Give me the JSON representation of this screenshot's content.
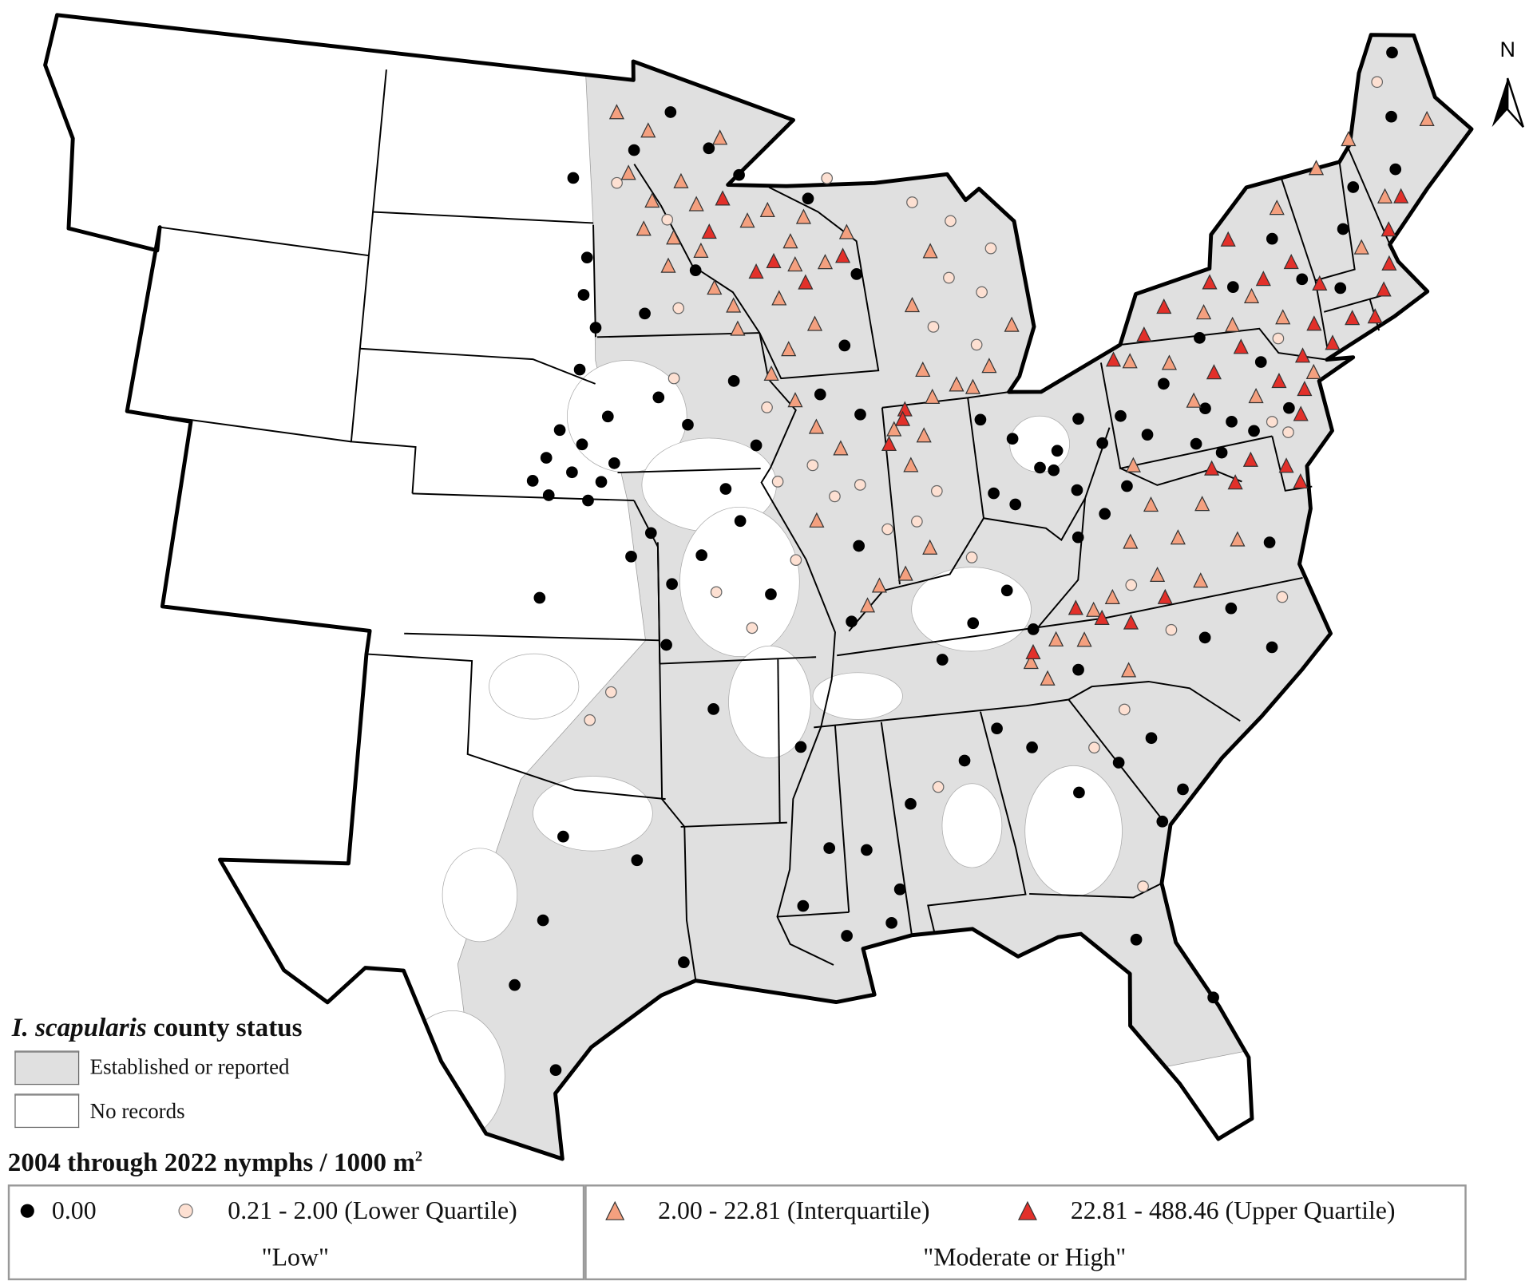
{
  "legend": {
    "status_title_italic": "I. scapularis",
    "status_title_rest": " county status",
    "established_label": "Established or reported",
    "no_records_label": "No records",
    "density_title": "2004 through 2022 nymphs / 1000 m",
    "density_title_sup": "2",
    "classes": [
      {
        "label": "0.00",
        "symbol": "circle",
        "color": "#000000"
      },
      {
        "label": "0.21 - 2.00 (Lower Quartile)",
        "symbol": "circle",
        "color": "#fde0d2"
      },
      {
        "label": "2.00 - 22.81 (Interquartile)",
        "symbol": "triangle",
        "color": "#f4a07f"
      },
      {
        "label": "22.81 - 488.46 (Upper Quartile)",
        "symbol": "triangle",
        "color": "#e2302a"
      }
    ],
    "group_low": "\"Low\"",
    "group_high": "\"Moderate or High\""
  },
  "north_arrow": {
    "label": "N"
  },
  "colors": {
    "established": "#e0e0e0",
    "no_records": "#ffffff",
    "border": "#000000"
  },
  "sites": [
    [
      -97.6,
      41.5,
      0
    ],
    [
      -96.9,
      41.2,
      0
    ],
    [
      -98.0,
      40.9,
      0
    ],
    [
      -97.2,
      40.6,
      0
    ],
    [
      -96.3,
      40.4,
      0
    ],
    [
      -97.9,
      40.1,
      0
    ],
    [
      -96.7,
      40.0,
      0
    ],
    [
      -95.9,
      40.8,
      0
    ],
    [
      -98.4,
      40.4,
      0
    ],
    [
      -96.1,
      41.8,
      0
    ],
    [
      -97.0,
      42.8,
      0
    ],
    [
      -96.5,
      43.7,
      0
    ],
    [
      -96.8,
      45.2,
      0
    ],
    [
      -97.3,
      46.9,
      0
    ],
    [
      -96.9,
      44.4,
      0
    ],
    [
      -95.4,
      38.8,
      0
    ],
    [
      -94.8,
      39.3,
      0
    ],
    [
      -98.1,
      37.9,
      0
    ],
    [
      -94.2,
      38.2,
      0
    ],
    [
      -94.4,
      36.9,
      0
    ],
    [
      -93.3,
      38.8,
      0
    ],
    [
      -92.5,
      40.2,
      0
    ],
    [
      -93.6,
      41.6,
      0
    ],
    [
      -94.5,
      42.2,
      0
    ],
    [
      -92.1,
      42.5,
      0
    ],
    [
      -91.5,
      41.1,
      0
    ],
    [
      -93.2,
      44.9,
      0
    ],
    [
      -94.9,
      44.0,
      0
    ],
    [
      -95.2,
      47.5,
      0
    ],
    [
      -92.6,
      47.5,
      0
    ],
    [
      -93.9,
      48.3,
      0
    ],
    [
      -91.6,
      46.9,
      0
    ],
    [
      -89.3,
      46.3,
      0
    ],
    [
      -87.9,
      44.6,
      0
    ],
    [
      -88.5,
      43.1,
      0
    ],
    [
      -89.4,
      42.1,
      0
    ],
    [
      -88.2,
      41.6,
      0
    ],
    [
      -84.5,
      41.2,
      0
    ],
    [
      -83.6,
      40.7,
      0
    ],
    [
      -82.9,
      40.0,
      0
    ],
    [
      -82.3,
      40.3,
      0
    ],
    [
      -81.5,
      40.9,
      0
    ],
    [
      -81.9,
      39.4,
      0
    ],
    [
      -82.5,
      39.9,
      0
    ],
    [
      -83.8,
      39.3,
      0
    ],
    [
      -84.4,
      39.6,
      0
    ],
    [
      -80.9,
      40.3,
      0
    ],
    [
      -80.4,
      39.3,
      0
    ],
    [
      -81.2,
      38.8,
      0
    ],
    [
      -82.1,
      38.4,
      0
    ],
    [
      -80.2,
      40.8,
      0
    ],
    [
      -79.5,
      40.3,
      0
    ],
    [
      -78.7,
      41.3,
      0
    ],
    [
      -77.6,
      40.6,
      0
    ],
    [
      -76.9,
      40.2,
      0
    ],
    [
      -76.3,
      39.9,
      0
    ],
    [
      -77.4,
      39.6,
      0
    ],
    [
      -78.1,
      39.9,
      0
    ],
    [
      -75.6,
      41.3,
      0
    ],
    [
      -75.1,
      40.2,
      0
    ],
    [
      -77.3,
      42.1,
      0
    ],
    [
      -75.9,
      43.0,
      0
    ],
    [
      -74.3,
      43.8,
      0
    ],
    [
      -73.7,
      42.8,
      0
    ],
    [
      -72.6,
      42.4,
      0
    ],
    [
      -72.0,
      43.6,
      0
    ],
    [
      -71.3,
      44.4,
      0
    ],
    [
      -69.8,
      44.5,
      0
    ],
    [
      -68.7,
      46.9,
      0
    ],
    [
      -69.4,
      45.6,
      0
    ],
    [
      -93.1,
      35.5,
      0
    ],
    [
      -90.7,
      34.6,
      0
    ],
    [
      -90.1,
      32.4,
      0
    ],
    [
      -90.9,
      31.2,
      0
    ],
    [
      -89.8,
      30.5,
      0
    ],
    [
      -88.6,
      30.7,
      0
    ],
    [
      -88.3,
      31.4,
      0
    ],
    [
      -89.1,
      32.3,
      0
    ],
    [
      -87.8,
      33.2,
      0
    ],
    [
      -86.2,
      34.0,
      0
    ],
    [
      -85.2,
      34.6,
      0
    ],
    [
      -84.3,
      34.1,
      0
    ],
    [
      -83.2,
      33.0,
      0
    ],
    [
      -82.0,
      33.5,
      0
    ],
    [
      -81.0,
      33.9,
      0
    ],
    [
      -80.4,
      32.7,
      0
    ],
    [
      -81.1,
      32.1,
      0
    ],
    [
      -82.3,
      29.7,
      0
    ],
    [
      -80.6,
      28.2,
      0
    ],
    [
      -97.8,
      31.0,
      0
    ],
    [
      -97.3,
      32.8,
      0
    ],
    [
      -98.5,
      29.6,
      0
    ],
    [
      -97.4,
      27.8,
      0
    ],
    [
      -95.3,
      32.3,
      0
    ],
    [
      -94.1,
      30.1,
      0
    ],
    [
      -86.5,
      36.2,
      0
    ],
    [
      -85.5,
      36.9,
      0
    ],
    [
      -84.4,
      37.5,
      0
    ],
    [
      -83.8,
      36.6,
      0
    ],
    [
      -82.7,
      35.6,
      0
    ],
    [
      -79.0,
      35.8,
      0
    ],
    [
      -78.1,
      36.3,
      0
    ],
    [
      -77.2,
      35.3,
      0
    ],
    [
      -76.6,
      37.5,
      0
    ],
    [
      -89.0,
      37.2,
      0
    ],
    [
      -88.6,
      38.8,
      0
    ],
    [
      -91.3,
      37.9,
      0
    ],
    [
      -92.1,
      39.5,
      0
    ],
    [
      -92.9,
      38.0,
      1
    ],
    [
      -91.9,
      37.2,
      1
    ],
    [
      -90.5,
      38.6,
      1
    ],
    [
      -89.8,
      40.6,
      1
    ],
    [
      -89.2,
      39.9,
      1
    ],
    [
      -88.4,
      40.1,
      1
    ],
    [
      -87.7,
      39.1,
      1
    ],
    [
      -90.9,
      40.3,
      1
    ],
    [
      -91.1,
      41.9,
      1
    ],
    [
      -94.0,
      42.6,
      1
    ],
    [
      -93.8,
      44.1,
      1
    ],
    [
      -95.8,
      46.8,
      1
    ],
    [
      -94.1,
      46.0,
      1
    ],
    [
      -96.6,
      35.3,
      1
    ],
    [
      -96.0,
      35.9,
      1
    ],
    [
      -84.9,
      44.3,
      1
    ],
    [
      -85.6,
      43.3,
      1
    ],
    [
      -84.3,
      42.8,
      1
    ],
    [
      -83.9,
      43.9,
      1
    ],
    [
      -84.6,
      45.5,
      1
    ],
    [
      -83.4,
      44.8,
      1
    ],
    [
      -86.1,
      39.8,
      1
    ],
    [
      -86.8,
      39.2,
      1
    ],
    [
      -85.3,
      38.3,
      1
    ],
    [
      -87.0,
      33.5,
      1
    ],
    [
      -81.6,
      34.6,
      1
    ],
    [
      -82.6,
      33.9,
      1
    ],
    [
      -81.9,
      30.8,
      1
    ],
    [
      -79.9,
      36.1,
      1
    ],
    [
      -76.6,
      36.3,
      1
    ],
    [
      -75.7,
      40.0,
      1
    ],
    [
      -74.9,
      41.7,
      1
    ],
    [
      -75.3,
      39.7,
      1
    ],
    [
      -69.5,
      46.4,
      1
    ],
    [
      -85.8,
      46.0,
      1
    ],
    [
      -88.6,
      46.7,
      1
    ],
    [
      -80.8,
      37.2,
      1
    ],
    [
      -95.8,
      48.3,
      2
    ],
    [
      -94.7,
      47.9,
      2
    ],
    [
      -95.4,
      47.0,
      2
    ],
    [
      -94.6,
      46.4,
      2
    ],
    [
      -93.6,
      46.8,
      2
    ],
    [
      -93.9,
      45.6,
      2
    ],
    [
      -94.9,
      45.8,
      2
    ],
    [
      -93.1,
      46.3,
      2
    ],
    [
      -92.2,
      47.7,
      2
    ],
    [
      -93.0,
      45.3,
      2
    ],
    [
      -94.1,
      45.0,
      2
    ],
    [
      -92.6,
      44.5,
      2
    ],
    [
      -92.0,
      44.1,
      2
    ],
    [
      -91.9,
      43.6,
      2
    ],
    [
      -91.4,
      45.9,
      2
    ],
    [
      -90.7,
      46.1,
      2
    ],
    [
      -90.0,
      45.4,
      2
    ],
    [
      -89.5,
      45.9,
      2
    ],
    [
      -89.9,
      44.9,
      2
    ],
    [
      -90.5,
      44.2,
      2
    ],
    [
      -88.9,
      44.9,
      2
    ],
    [
      -88.1,
      45.5,
      2
    ],
    [
      -89.4,
      43.6,
      2
    ],
    [
      -90.3,
      43.1,
      2
    ],
    [
      -90.9,
      42.6,
      2
    ],
    [
      -90.2,
      42.0,
      2
    ],
    [
      -89.6,
      41.4,
      2
    ],
    [
      -88.9,
      40.9,
      2
    ],
    [
      -89.8,
      39.4,
      2
    ],
    [
      -87.2,
      41.2,
      2
    ],
    [
      -86.8,
      40.4,
      2
    ],
    [
      -86.3,
      41.0,
      2
    ],
    [
      -86.5,
      38.6,
      2
    ],
    [
      -87.3,
      38.1,
      2
    ],
    [
      -88.1,
      37.9,
      2
    ],
    [
      -88.5,
      37.5,
      2
    ],
    [
      -86.1,
      42.4,
      2
    ],
    [
      -86.2,
      43.8,
      2
    ],
    [
      -85.4,
      44.9,
      2
    ],
    [
      -85.1,
      42.0,
      2
    ],
    [
      -84.6,
      41.9,
      2
    ],
    [
      -84.0,
      42.3,
      2
    ],
    [
      -85.9,
      41.8,
      2
    ],
    [
      -83.1,
      43.1,
      2
    ],
    [
      -82.0,
      36.8,
      2
    ],
    [
      -81.4,
      37.0,
      2
    ],
    [
      -83.2,
      36.3,
      2
    ],
    [
      -84.0,
      35.9,
      2
    ],
    [
      -83.6,
      35.5,
      2
    ],
    [
      -82.4,
      36.2,
      2
    ],
    [
      -80.0,
      37.3,
      2
    ],
    [
      -79.2,
      38.0,
      2
    ],
    [
      -78.3,
      38.6,
      2
    ],
    [
      -77.5,
      37.7,
      2
    ],
    [
      -80.6,
      38.1,
      2
    ],
    [
      -79.8,
      38.8,
      2
    ],
    [
      -81.3,
      35.4,
      2
    ],
    [
      -78.8,
      37.0,
      2
    ],
    [
      -77.0,
      42.6,
      2
    ],
    [
      -76.2,
      42.2,
      2
    ],
    [
      -75.4,
      42.7,
      2
    ],
    [
      -74.6,
      42.1,
      2
    ],
    [
      -73.9,
      44.4,
      2
    ],
    [
      -72.3,
      45.0,
      2
    ],
    [
      -71.6,
      43.1,
      2
    ],
    [
      -70.4,
      44.0,
      2
    ],
    [
      -68.3,
      45.3,
      2
    ],
    [
      -71.0,
      45.4,
      2
    ],
    [
      -74.1,
      40.8,
      2
    ],
    [
      -76.0,
      40.6,
      2
    ],
    [
      -78.4,
      41.7,
      2
    ],
    [
      -79.6,
      41.9,
      2
    ],
    [
      -77.9,
      40.8,
      2
    ],
    [
      -80.1,
      39.7,
      2
    ],
    [
      -92.2,
      46.4,
      3
    ],
    [
      -92.7,
      45.7,
      3
    ],
    [
      -91.2,
      44.8,
      3
    ],
    [
      -90.6,
      45.0,
      3
    ],
    [
      -89.6,
      44.5,
      3
    ],
    [
      -88.3,
      45.0,
      3
    ],
    [
      -86.8,
      41.6,
      3
    ],
    [
      -87.4,
      40.9,
      3
    ],
    [
      -86.9,
      41.4,
      3
    ],
    [
      -80.1,
      42.0,
      3
    ],
    [
      -79.0,
      42.4,
      3
    ],
    [
      -78.2,
      42.9,
      3
    ],
    [
      -76.6,
      43.2,
      3
    ],
    [
      -75.7,
      44.0,
      3
    ],
    [
      -74.9,
      43.0,
      3
    ],
    [
      -73.9,
      43.2,
      3
    ],
    [
      -73.7,
      41.8,
      3
    ],
    [
      -73.2,
      42.6,
      3
    ],
    [
      -72.5,
      41.7,
      3
    ],
    [
      -71.8,
      41.6,
      3
    ],
    [
      -71.3,
      42.1,
      3
    ],
    [
      -70.9,
      42.6,
      3
    ],
    [
      -70.6,
      43.3,
      3
    ],
    [
      -69.9,
      43.9,
      3
    ],
    [
      -74.5,
      40.5,
      3
    ],
    [
      -74.8,
      40.0,
      3
    ],
    [
      -75.2,
      40.8,
      3
    ],
    [
      -76.1,
      41.7,
      3
    ],
    [
      -77.1,
      41.3,
      3
    ],
    [
      -74.3,
      41.2,
      3
    ],
    [
      -73.3,
      41.3,
      3
    ],
    [
      -77.2,
      38.9,
      3
    ],
    [
      -76.6,
      39.3,
      3
    ],
    [
      -77.8,
      39.3,
      3
    ],
    [
      -81.8,
      36.6,
      3
    ],
    [
      -82.5,
      36.9,
      3
    ],
    [
      -81.0,
      36.4,
      3
    ],
    [
      -79.9,
      36.8,
      3
    ],
    [
      -75.6,
      39.0,
      3
    ],
    [
      -75.3,
      38.6,
      3
    ],
    [
      -83.9,
      36.1,
      3
    ]
  ]
}
